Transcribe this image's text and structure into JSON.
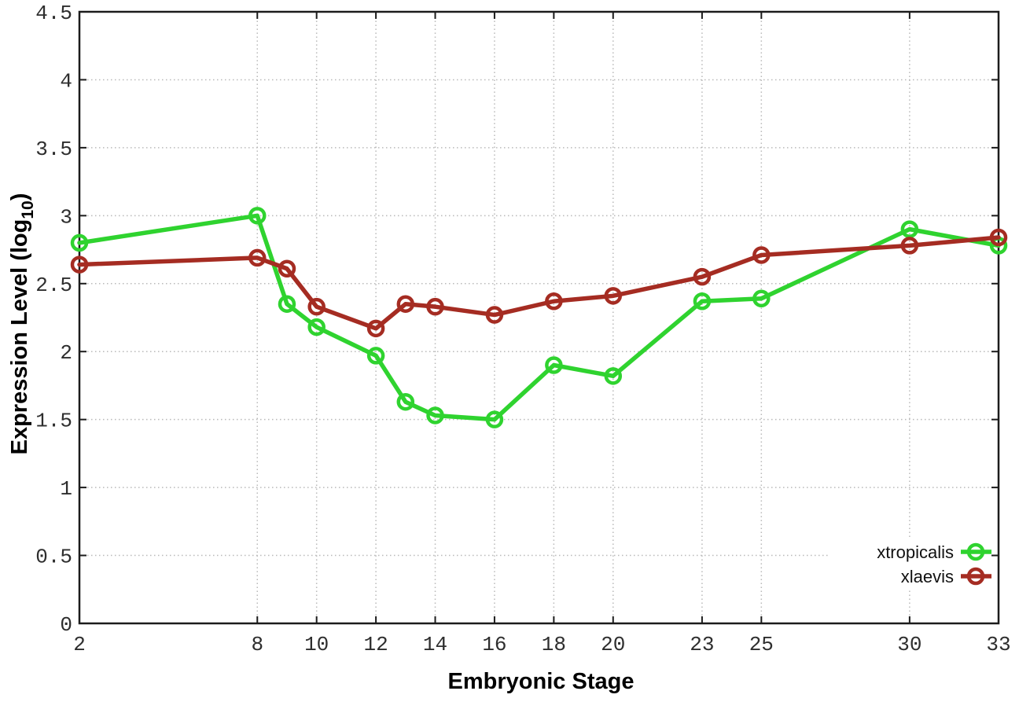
{
  "figure": {
    "background": "#ffffff",
    "ylabel_prefix": "Expression Level (log",
    "ylabel_sub": "10",
    "ylabel_suffix": ")"
  },
  "chart_data": {
    "type": "line",
    "title": "",
    "xlabel": "Embryonic Stage",
    "ylabel": "Expression Level (log10)",
    "x": [
      2,
      8,
      9,
      10,
      12,
      13,
      14,
      16,
      18,
      20,
      23,
      25,
      30,
      33
    ],
    "x_ticks": [
      2,
      8,
      10,
      12,
      14,
      16,
      18,
      20,
      23,
      25,
      30,
      33
    ],
    "y_ticks": [
      0,
      0.5,
      1,
      1.5,
      2,
      2.5,
      3,
      3.5,
      4,
      4.5
    ],
    "xlim": [
      2,
      33
    ],
    "ylim": [
      0,
      4.5
    ],
    "grid": true,
    "grid_style": "dotted",
    "legend_position": "inside-right",
    "marker": "open-circle",
    "series": [
      {
        "name": "xtropicalis",
        "color": "#2fd32f",
        "values": [
          2.8,
          3.0,
          2.35,
          2.18,
          1.97,
          1.63,
          1.53,
          1.5,
          1.9,
          1.82,
          2.37,
          2.39,
          2.9,
          2.78
        ]
      },
      {
        "name": "xlaevis",
        "color": "#a52c22",
        "values": [
          2.64,
          2.69,
          2.61,
          2.33,
          2.17,
          2.35,
          2.33,
          2.27,
          2.37,
          2.41,
          2.55,
          2.71,
          2.78,
          2.84
        ]
      }
    ]
  }
}
